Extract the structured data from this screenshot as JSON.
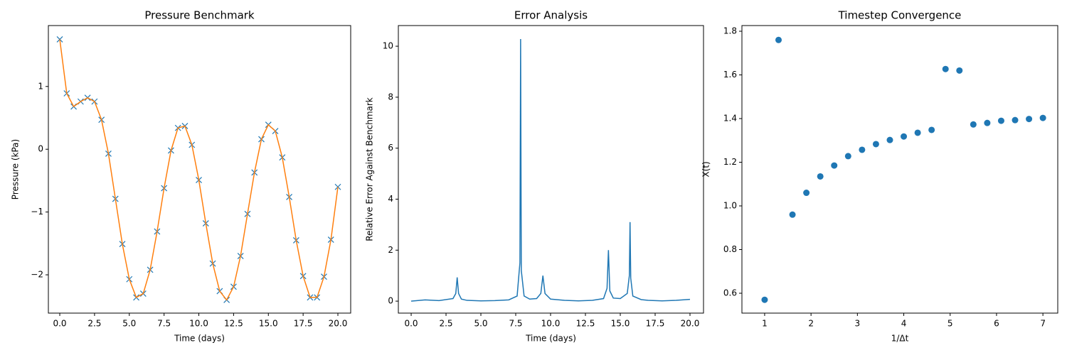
{
  "chart_data": [
    {
      "type": "line",
      "title": "Pressure Benchmark",
      "xlabel": "Time (days)",
      "ylabel": "Pressure (kPa)",
      "x": [
        0,
        0.5,
        1,
        1.5,
        2,
        2.5,
        3,
        3.5,
        4,
        4.5,
        5,
        5.5,
        6,
        6.5,
        7,
        7.5,
        8,
        8.5,
        9,
        9.5,
        10,
        10.5,
        11,
        11.5,
        12,
        12.5,
        13,
        13.5,
        14,
        14.5,
        15,
        15.5,
        16,
        16.5,
        17,
        17.5,
        18,
        18.5,
        19,
        19.5,
        20
      ],
      "series": [
        {
          "color": "#1f77b4",
          "marker": "x",
          "line": false,
          "values": [
            1.75,
            0.89,
            0.68,
            0.76,
            0.82,
            0.76,
            0.47,
            -0.07,
            -0.79,
            -1.51,
            -2.07,
            -2.36,
            -2.3,
            -1.92,
            -1.31,
            -0.62,
            -0.02,
            0.34,
            0.37,
            0.07,
            -0.49,
            -1.18,
            -1.82,
            -2.26,
            -2.4,
            -2.19,
            -1.7,
            -1.03,
            -0.37,
            0.16,
            0.39,
            0.29,
            -0.13,
            -0.76,
            -1.45,
            -2.02,
            -2.36,
            -2.36,
            -2.03,
            -1.44,
            -0.6
          ]
        },
        {
          "color": "#ff7f0e",
          "values": [
            1.75,
            0.89,
            0.68,
            0.76,
            0.82,
            0.76,
            0.47,
            -0.07,
            -0.79,
            -1.51,
            -2.07,
            -2.36,
            -2.3,
            -1.92,
            -1.31,
            -0.62,
            -0.02,
            0.34,
            0.37,
            0.07,
            -0.49,
            -1.18,
            -1.82,
            -2.26,
            -2.4,
            -2.19,
            -1.7,
            -1.03,
            -0.37,
            0.16,
            0.39,
            0.29,
            -0.13,
            -0.76,
            -1.45,
            -2.02,
            -2.36,
            -2.36,
            -2.03,
            -1.44,
            -0.6
          ]
        }
      ],
      "xlim": [
        -0.82,
        20.92
      ],
      "ylim": [
        -2.61,
        1.97
      ],
      "xticks": [
        {
          "value": 0,
          "label": "0.0"
        },
        2.5,
        {
          "value": 5,
          "label": "5.0"
        },
        7.5,
        {
          "value": 10,
          "label": "10.0"
        },
        12.5,
        {
          "value": 15,
          "label": "15.0"
        },
        17.5,
        {
          "value": 20,
          "label": "20.0"
        }
      ],
      "yticks": [
        {
          "value": -2,
          "label": "−2"
        },
        {
          "value": -1,
          "label": "−1"
        },
        0,
        1
      ]
    },
    {
      "type": "line",
      "title": "Error Analysis",
      "xlabel": "Time (days)",
      "ylabel": "Relative Error Against Benchmark",
      "x": [
        0,
        1,
        2,
        3,
        3.2,
        3.3,
        3.4,
        3.6,
        4,
        5,
        6,
        7,
        7.6,
        7.8,
        7.85,
        7.9,
        8.1,
        8.5,
        9,
        9.3,
        9.45,
        9.6,
        10,
        11,
        12,
        13,
        13.8,
        14.05,
        14.15,
        14.25,
        14.5,
        15,
        15.5,
        15.65,
        15.7,
        15.75,
        15.9,
        16.5,
        17,
        18,
        19,
        20
      ],
      "series": [
        {
          "color": "#1f77b4",
          "values": [
            0,
            0.05,
            0.02,
            0.1,
            0.3,
            0.93,
            0.3,
            0.08,
            0.03,
            0.01,
            0.02,
            0.05,
            0.2,
            1.5,
            10.28,
            1.2,
            0.2,
            0.08,
            0.1,
            0.3,
            1.0,
            0.3,
            0.08,
            0.03,
            0.01,
            0.03,
            0.1,
            0.5,
            2.0,
            0.4,
            0.12,
            0.1,
            0.3,
            1.0,
            3.1,
            0.9,
            0.2,
            0.06,
            0.03,
            0.01,
            0.03,
            0.07
          ]
        }
      ],
      "xlim": [
        -0.92,
        20.97
      ],
      "ylim": [
        -0.47,
        10.81
      ],
      "xticks": [
        {
          "value": 0,
          "label": "0.0"
        },
        2.5,
        {
          "value": 5,
          "label": "5.0"
        },
        7.5,
        {
          "value": 10,
          "label": "10.0"
        },
        12.5,
        {
          "value": 15,
          "label": "15.0"
        },
        17.5,
        {
          "value": 20,
          "label": "20.0"
        }
      ],
      "yticks": [
        0,
        2,
        4,
        6,
        8,
        10
      ]
    },
    {
      "type": "scatter",
      "title": "Timestep Convergence",
      "xlabel": "1/Δt",
      "ylabel": "X(t)",
      "x": [
        1,
        1.3,
        1.6,
        1.9,
        2.2,
        2.5,
        2.8,
        3.1,
        3.4,
        3.7,
        4,
        4.3,
        4.6,
        4.9,
        5.2,
        5.5,
        5.8,
        6.1,
        6.4,
        6.7,
        7
      ],
      "values": [
        0.57,
        1.76,
        0.96,
        1.06,
        1.135,
        1.185,
        1.228,
        1.257,
        1.283,
        1.302,
        1.318,
        1.335,
        1.348,
        1.627,
        1.62,
        1.373,
        1.38,
        1.39,
        1.393,
        1.398,
        1.403
      ],
      "color": "#1f77b4",
      "xlim": [
        0.51,
        7.32
      ],
      "ylim": [
        0.509,
        1.826
      ],
      "xticks": [
        1,
        2,
        3,
        4,
        5,
        6,
        7
      ],
      "yticks": [
        0.6,
        0.8,
        {
          "value": 1,
          "label": "1.0"
        },
        1.2,
        1.4,
        1.6,
        1.8
      ]
    }
  ]
}
